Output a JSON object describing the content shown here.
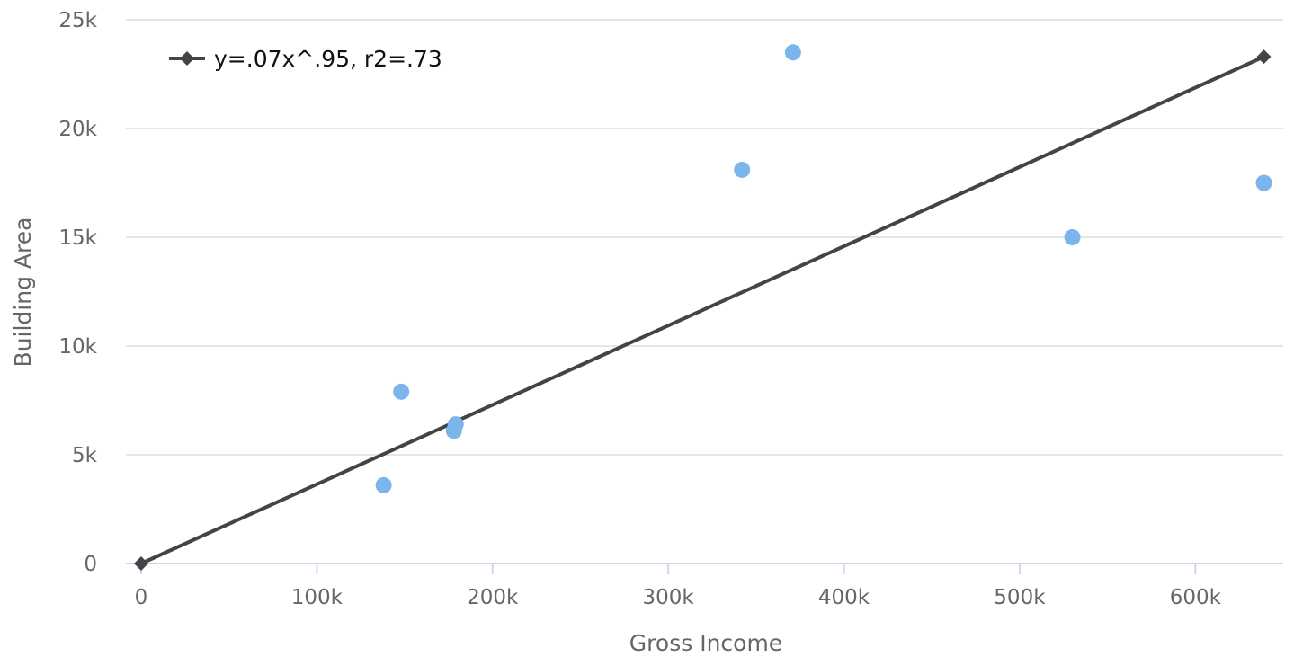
{
  "chart_data": {
    "type": "scatter",
    "xlabel": "Gross Income",
    "ylabel": "Building Area",
    "xlim": [
      0,
      650000
    ],
    "ylim": [
      0,
      25000
    ],
    "x_ticks": [
      {
        "value": 0,
        "label": "0"
      },
      {
        "value": 100000,
        "label": "100k"
      },
      {
        "value": 200000,
        "label": "200k"
      },
      {
        "value": 300000,
        "label": "300k"
      },
      {
        "value": 400000,
        "label": "400k"
      },
      {
        "value": 500000,
        "label": "500k"
      },
      {
        "value": 600000,
        "label": "600k"
      }
    ],
    "y_ticks": [
      {
        "value": 0,
        "label": "0"
      },
      {
        "value": 5000,
        "label": "5k"
      },
      {
        "value": 10000,
        "label": "10k"
      },
      {
        "value": 15000,
        "label": "15k"
      },
      {
        "value": 20000,
        "label": "20k"
      },
      {
        "value": 25000,
        "label": "25k"
      }
    ],
    "grid": true,
    "legend_position": "top-left",
    "series": [
      {
        "type": "scatter",
        "color": "#7cb5ec",
        "points": [
          {
            "x": 138000,
            "y": 3600
          },
          {
            "x": 148000,
            "y": 7900
          },
          {
            "x": 178000,
            "y": 6100
          },
          {
            "x": 179000,
            "y": 6400
          },
          {
            "x": 342000,
            "y": 18100
          },
          {
            "x": 371000,
            "y": 23500
          },
          {
            "x": 530000,
            "y": 15000
          },
          {
            "x": 639000,
            "y": 17500
          }
        ]
      },
      {
        "type": "line",
        "name": "y=.07x^.95, r2=.73",
        "color": "#434348",
        "marker": "diamond",
        "points": [
          {
            "x": 0,
            "y": 0
          },
          {
            "x": 639000,
            "y": 23300
          }
        ]
      }
    ]
  }
}
